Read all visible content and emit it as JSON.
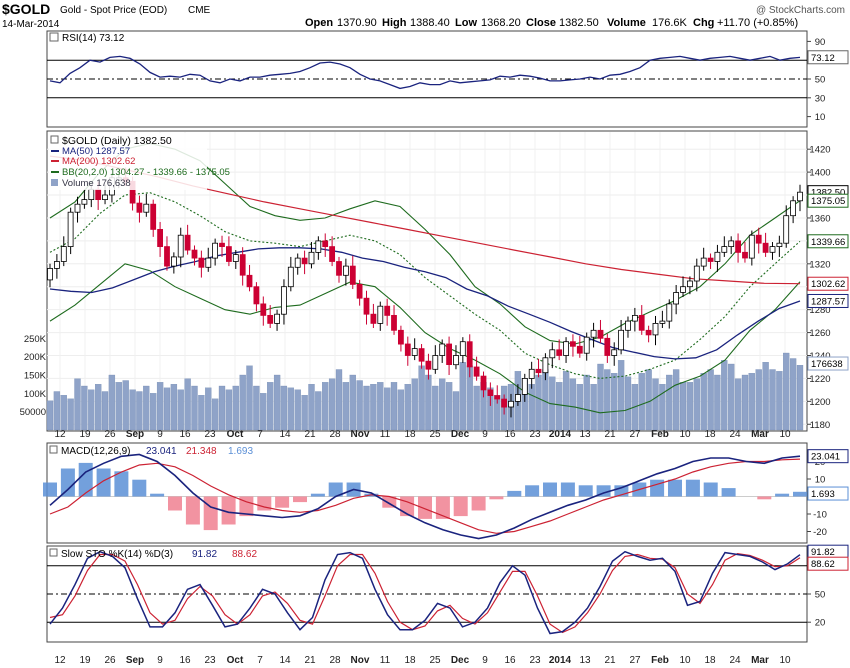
{
  "header": {
    "symbol": "$GOLD",
    "name": "Gold - Spot Price (EOD)",
    "exchange": "CME",
    "date": "14-Mar-2014",
    "copyright": "@ StockCharts.com",
    "open_label": "Open",
    "open": "1370.90",
    "high_label": "High",
    "high": "1388.40",
    "low_label": "Low",
    "low": "1368.20",
    "close_label": "Close",
    "close": "1382.50",
    "volume_label": "Volume",
    "volume": "176.6K",
    "chg_label": "Chg",
    "chg": "+11.70 (+0.85%)"
  },
  "colors": {
    "up": "#000000",
    "down": "#cc0033",
    "ma50": "#1a237e",
    "ma200": "#cc2233",
    "bb": "#1e6b1e",
    "volume": "#8fa3c8",
    "macd": "#1a237e",
    "signal": "#cc2233",
    "hist_pos": "#5b8fd6",
    "hist_neg": "#f08090",
    "stoch_k": "#1a237e",
    "stoch_d": "#cc2233",
    "panel_bg": "#ffffff",
    "border": "#444444"
  },
  "chart_data": [
    {
      "panel": "rsi",
      "type": "line",
      "legend": "RSI(14) 73.12",
      "current_label": "73.12",
      "current": 73.12,
      "yticks": [
        10,
        30,
        50,
        70,
        90
      ],
      "ylim": [
        0,
        100
      ],
      "reference_lines": [
        30,
        50,
        70
      ],
      "values": [
        48,
        46,
        56,
        62,
        70,
        68,
        73,
        74,
        72,
        66,
        57,
        52,
        53,
        52,
        55,
        54,
        48,
        46,
        50,
        48,
        52,
        52,
        54,
        55,
        56,
        58,
        62,
        67,
        68,
        66,
        62,
        55,
        50,
        48,
        44,
        40,
        42,
        46,
        44,
        44,
        48,
        46,
        47,
        48,
        49,
        53,
        52,
        54,
        53,
        51,
        48,
        48,
        49,
        50,
        52,
        50,
        54,
        55,
        58,
        62,
        70,
        72,
        73,
        74,
        72,
        70,
        72,
        73,
        74,
        72,
        70,
        72,
        74,
        70,
        72,
        73
      ]
    },
    {
      "panel": "price",
      "type": "candlestick",
      "legend": [
        "$GOLD (Daily) 1382.50",
        "MA(50) 1287.57",
        "MA(200) 1302.62",
        "BB(20,2.0) 1304.27 - 1339.66 - 1375.05",
        "Volume 176,638"
      ],
      "right_labels": [
        {
          "label": "1382.50",
          "value": 1382.5
        },
        {
          "label": "1375.05",
          "value": 1375.05
        },
        {
          "label": "1339.66",
          "value": 1339.66
        },
        {
          "label": "1302.62",
          "value": 1302.62
        },
        {
          "label": "1287.57",
          "value": 1287.57
        },
        {
          "label": "176638",
          "value": 1233
        }
      ],
      "ylim": [
        1175,
        1435
      ],
      "yticks": [
        1180,
        1200,
        1220,
        1240,
        1260,
        1280,
        1300,
        1320,
        1340,
        1360,
        1380,
        1400,
        1420
      ],
      "volume_ticks": [
        "50000",
        "100K",
        "150K",
        "200K",
        "250K"
      ],
      "x_labels": [
        "12",
        "19",
        "26",
        "Sep",
        "9",
        "16",
        "23",
        "Oct",
        "7",
        "14",
        "21",
        "28",
        "Nov",
        "11",
        "18",
        "25",
        "Dec",
        "9",
        "16",
        "23",
        "2014",
        "13",
        "21",
        "27",
        "Feb",
        "10",
        "18",
        "24",
        "Mar",
        "10"
      ],
      "closes": [
        1316,
        1322,
        1335,
        1365,
        1372,
        1376,
        1385,
        1376,
        1380,
        1395,
        1395,
        1392,
        1373,
        1365,
        1372,
        1350,
        1335,
        1318,
        1326,
        1345,
        1332,
        1325,
        1317,
        1325,
        1338,
        1335,
        1322,
        1328,
        1310,
        1300,
        1285,
        1275,
        1268,
        1276,
        1300,
        1317,
        1325,
        1320,
        1330,
        1340,
        1335,
        1322,
        1310,
        1318,
        1302,
        1290,
        1276,
        1268,
        1283,
        1275,
        1262,
        1250,
        1240,
        1246,
        1235,
        1228,
        1240,
        1250,
        1232,
        1240,
        1252,
        1230,
        1222,
        1210,
        1205,
        1202,
        1195,
        1200,
        1206,
        1220,
        1228,
        1225,
        1238,
        1245,
        1240,
        1252,
        1248,
        1242,
        1256,
        1262,
        1255,
        1240,
        1245,
        1262,
        1270,
        1275,
        1262,
        1258,
        1268,
        1270,
        1285,
        1295,
        1300,
        1305,
        1318,
        1325,
        1322,
        1330,
        1335,
        1340,
        1330,
        1325,
        1345,
        1338,
        1330,
        1335,
        1338,
        1362,
        1375,
        1382.5
      ],
      "vol_k": [
        80,
        105,
        95,
        85,
        140,
        120,
        110,
        125,
        105,
        150,
        130,
        135,
        110,
        105,
        120,
        100,
        130,
        115,
        125,
        110,
        140,
        120,
        95,
        115,
        85,
        120,
        110,
        120,
        150,
        175,
        120,
        100,
        130,
        150,
        120,
        115,
        110,
        95,
        125,
        105,
        130,
        140,
        165,
        130,
        150,
        135,
        120,
        125,
        130,
        115,
        130,
        110,
        125,
        140,
        175,
        150,
        120,
        140,
        130,
        105,
        185,
        175,
        120,
        130,
        115,
        95,
        120,
        125,
        160,
        140,
        125,
        150,
        165,
        145,
        130,
        160,
        140,
        125,
        150,
        125,
        180,
        165,
        155,
        190,
        145,
        125,
        155,
        165,
        140,
        125,
        150,
        165,
        130,
        130,
        140,
        155,
        165,
        150,
        190,
        180,
        140,
        150,
        155,
        165,
        185,
        165,
        160,
        210,
        195,
        176.6
      ],
      "ma50_values": [
        1298,
        1296,
        1295,
        1299,
        1306,
        1313,
        1318,
        1322,
        1327,
        1330,
        1333,
        1334,
        1334,
        1333,
        1330,
        1325,
        1322,
        1317,
        1313,
        1308,
        1298,
        1292,
        1283,
        1276,
        1269,
        1261,
        1254,
        1247,
        1243,
        1239,
        1237,
        1238,
        1245,
        1258,
        1270,
        1281,
        1287.57
      ],
      "ma200_values": [
        1414,
        1410,
        1403,
        1396,
        1388,
        1381,
        1374,
        1368,
        1362,
        1356,
        1350,
        1344,
        1338,
        1332,
        1326,
        1320,
        1315,
        1311,
        1307,
        1305,
        1303,
        1302.62
      ],
      "bb_upper": [
        1360,
        1374,
        1400,
        1420,
        1425,
        1420,
        1410,
        1390,
        1370,
        1362,
        1358,
        1360,
        1368,
        1375,
        1370,
        1350,
        1328,
        1300,
        1285,
        1265,
        1253,
        1250,
        1256,
        1268,
        1278,
        1288,
        1300,
        1320,
        1345,
        1360,
        1375.05
      ],
      "bb_mid": [
        1330,
        1342,
        1364,
        1380,
        1382,
        1374,
        1362,
        1348,
        1340,
        1338,
        1335,
        1340,
        1345,
        1340,
        1328,
        1308,
        1292,
        1276,
        1262,
        1242,
        1232,
        1224,
        1220,
        1222,
        1228,
        1236,
        1254,
        1274,
        1300,
        1320,
        1339.66
      ],
      "bb_lower": [
        1270,
        1284,
        1302,
        1320,
        1314,
        1300,
        1290,
        1280,
        1276,
        1282,
        1284,
        1294,
        1304,
        1300,
        1282,
        1260,
        1246,
        1236,
        1224,
        1208,
        1198,
        1195,
        1190,
        1192,
        1200,
        1214,
        1222,
        1236,
        1262,
        1280,
        1304.27
      ]
    },
    {
      "panel": "macd",
      "type": "line",
      "legend": [
        "MACD(12,26,9)",
        "23.041",
        "21.348",
        "1.693"
      ],
      "right_labels": [
        {
          "label": "23.041",
          "value": 23.041
        },
        {
          "label": "1.693",
          "value": 1.693
        }
      ],
      "yticks": [
        20,
        10,
        0,
        -10,
        -20
      ],
      "ylim": [
        -26,
        30
      ],
      "macd_values": [
        -5,
        4,
        14,
        19,
        23,
        24,
        20,
        12,
        2,
        -6,
        -9,
        -10,
        -11,
        -12,
        -11,
        -7,
        0,
        4,
        2,
        -4,
        -10,
        -15,
        -19,
        -22,
        -24,
        -22,
        -18,
        -13,
        -9,
        -5,
        -2,
        2,
        5,
        9,
        13,
        16,
        20,
        22,
        22,
        20,
        19,
        22,
        23.041
      ],
      "signal_values": [
        -10,
        -6,
        2,
        9,
        14,
        18,
        19,
        17,
        12,
        6,
        1,
        -3,
        -6,
        -8,
        -9,
        -8,
        -5,
        -1,
        1,
        0,
        -3,
        -7,
        -11,
        -15,
        -19,
        -21,
        -20,
        -17,
        -14,
        -10,
        -6,
        -2,
        1,
        4,
        7,
        10,
        14,
        17,
        19,
        20,
        20,
        21,
        21.348
      ]
    },
    {
      "panel": "stochastic",
      "type": "line",
      "legend": [
        "Slow STO %K(14) %D(3)",
        "91.82",
        "88.62"
      ],
      "right_labels": [
        {
          "label": "91.82",
          "value": 91.82
        },
        {
          "label": "88.62",
          "value": 88.62
        }
      ],
      "yticks": [
        20,
        50,
        80
      ],
      "ylim": [
        0,
        100
      ],
      "reference_lines": [
        20,
        50,
        80
      ],
      "k_values": [
        18,
        35,
        60,
        88,
        95,
        90,
        78,
        45,
        15,
        15,
        30,
        55,
        60,
        38,
        15,
        18,
        35,
        55,
        50,
        30,
        12,
        25,
        65,
        92,
        94,
        88,
        55,
        28,
        12,
        12,
        22,
        40,
        35,
        15,
        20,
        35,
        62,
        80,
        70,
        35,
        8,
        10,
        20,
        35,
        58,
        85,
        95,
        90,
        86,
        88,
        74,
        38,
        42,
        72,
        94,
        92,
        90,
        84,
        76,
        82,
        91.82
      ],
      "d_values": [
        25,
        28,
        48,
        75,
        92,
        92,
        85,
        60,
        30,
        18,
        22,
        45,
        58,
        48,
        28,
        18,
        28,
        48,
        52,
        40,
        22,
        18,
        48,
        80,
        92,
        92,
        72,
        42,
        20,
        12,
        16,
        32,
        38,
        24,
        18,
        30,
        52,
        74,
        74,
        48,
        18,
        9,
        15,
        30,
        50,
        75,
        90,
        92,
        88,
        87,
        78,
        50,
        40,
        60,
        86,
        93,
        91,
        86,
        79,
        80,
        88.62
      ]
    }
  ]
}
